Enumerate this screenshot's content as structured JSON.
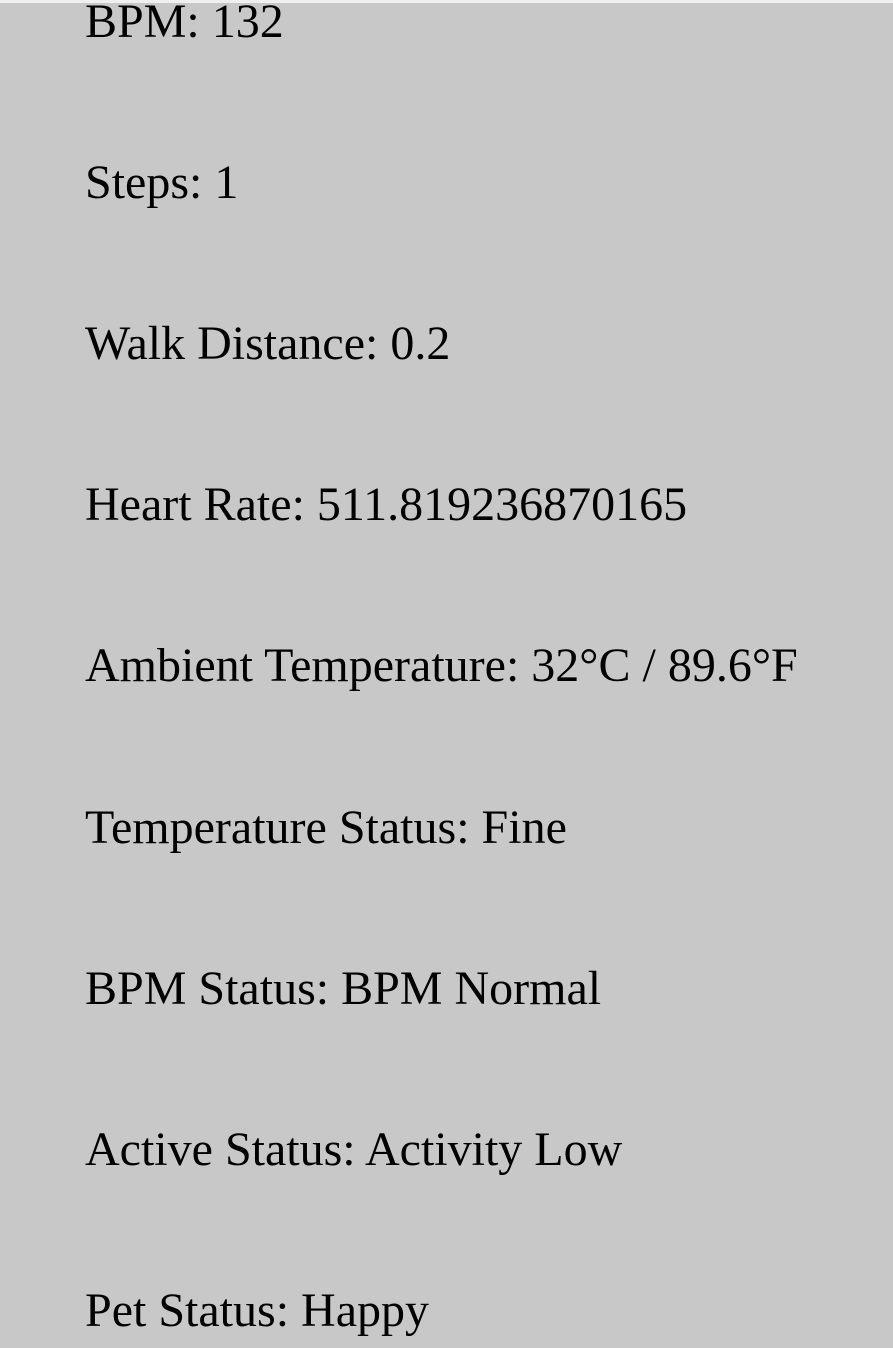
{
  "colors": {
    "background": "#c8c8c8",
    "text": "#000000"
  },
  "readings": [
    {
      "label": "BPM",
      "value": "132"
    },
    {
      "label": "Steps",
      "value": "1"
    },
    {
      "label": "Walk Distance",
      "value": "0.2"
    },
    {
      "label": "Heart Rate",
      "value": "511.819236870165"
    },
    {
      "label": "Ambient Temperature",
      "value": "32°C / 89.6°F"
    },
    {
      "label": "Temperature Status",
      "value": "Fine"
    },
    {
      "label": "BPM Status",
      "value": "BPM Normal"
    },
    {
      "label": "Active Status",
      "value": "Activity Low"
    },
    {
      "label": "Pet Status",
      "value": "Happy"
    }
  ]
}
